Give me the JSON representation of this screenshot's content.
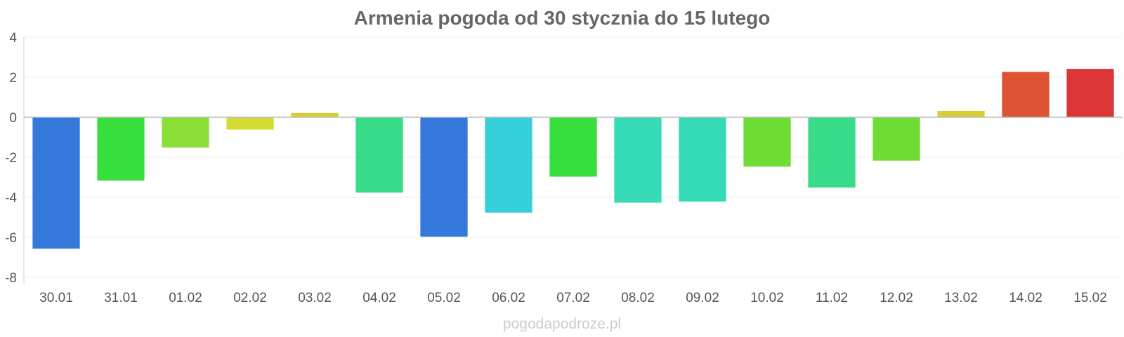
{
  "chart_data": {
    "type": "bar",
    "title": "Armenia pogoda od 30 stycznia do 15 lutego",
    "xlabel": "",
    "ylabel": "",
    "categories": [
      "30.01",
      "31.01",
      "01.02",
      "02.02",
      "03.02",
      "04.02",
      "05.02",
      "06.02",
      "07.02",
      "08.02",
      "09.02",
      "10.02",
      "11.02",
      "12.02",
      "13.02",
      "14.02",
      "15.02"
    ],
    "values": [
      -6.55,
      -3.15,
      -1.5,
      -0.6,
      0.2,
      -3.75,
      -5.95,
      -4.75,
      -2.95,
      -4.25,
      -4.2,
      -2.45,
      -3.5,
      -2.15,
      0.3,
      2.25,
      2.4
    ],
    "colors": [
      "#3578dc",
      "#36df3b",
      "#8be038",
      "#d2dc34",
      "#d6ce32",
      "#38dc88",
      "#3578dc",
      "#36d0da",
      "#36df3b",
      "#35dbb5",
      "#35dbb5",
      "#6edd36",
      "#38dc88",
      "#6edd36",
      "#d6ce32",
      "#de5433",
      "#dc3535"
    ],
    "ylim": [
      -8,
      4
    ],
    "yticks": [
      4,
      2,
      0,
      -2,
      -4,
      -6,
      -8
    ],
    "grid": true,
    "legend": "none"
  },
  "watermark": "pogodapodroze.pl"
}
